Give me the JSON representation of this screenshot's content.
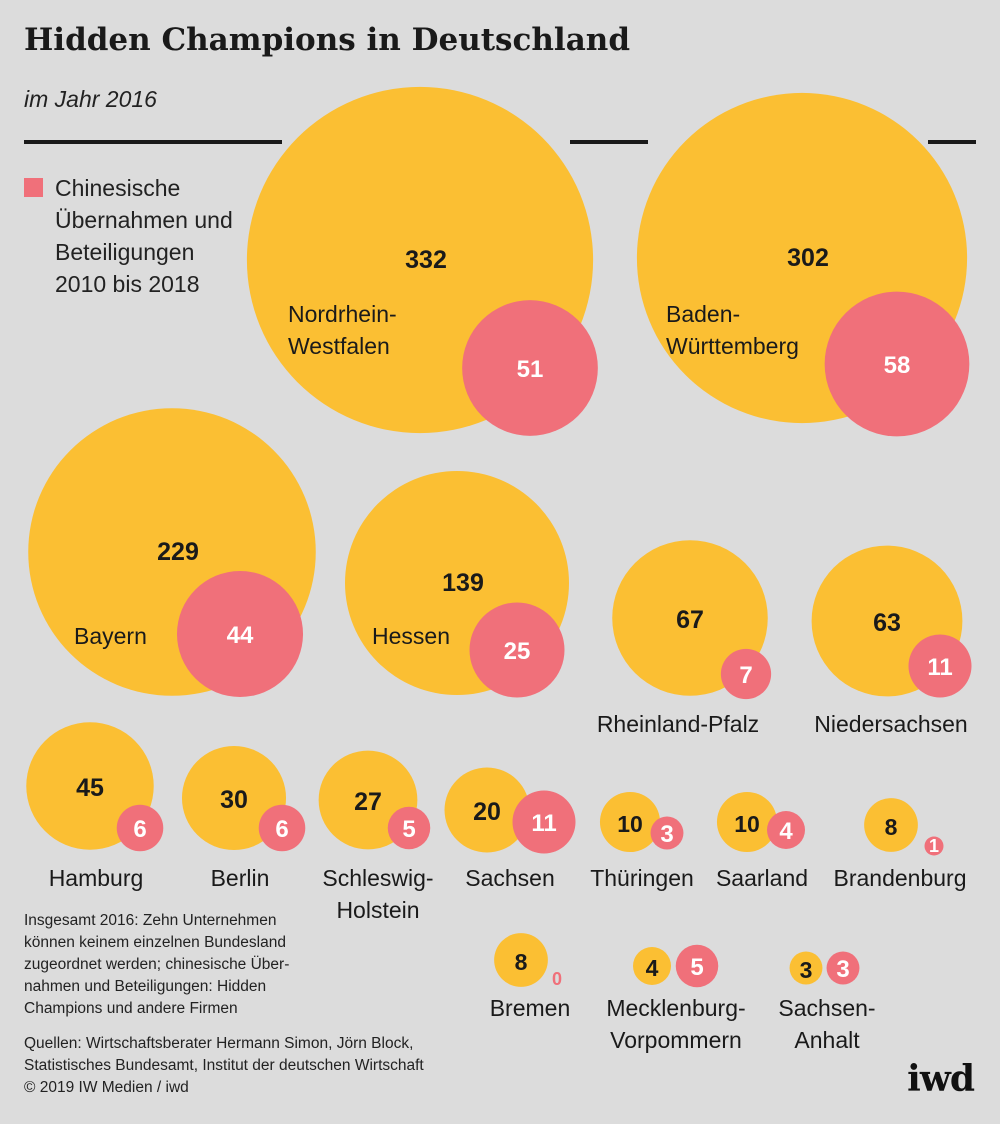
{
  "title": "Hidden Champions in Deutschland",
  "subtitle": "im Jahr 2016",
  "legend": {
    "label": "Chinesische Übernahmen und Beteiligungen 2010 bis 2018",
    "color": "#f0707a"
  },
  "colors": {
    "champions": "#fbbf33",
    "chinese": "#f0707a",
    "chinese_label": "#f0707a",
    "value_text": "#1a1a1a",
    "chinese_text": "#ffffff"
  },
  "chart_data": {
    "type": "bubble",
    "title": "Hidden Champions in Deutschland",
    "subtitle": "im Jahr 2016",
    "series": [
      {
        "name": "Hidden Champions 2016",
        "color": "#fbbf33"
      },
      {
        "name": "Chinesische Übernahmen und Beteiligungen 2010 bis 2018",
        "color": "#f0707a"
      }
    ],
    "regions": [
      {
        "label": "Nordrhein-Westfalen",
        "champions": 332,
        "chinese": 51
      },
      {
        "label": "Baden-Württemberg",
        "champions": 302,
        "chinese": 58
      },
      {
        "label": "Bayern",
        "champions": 229,
        "chinese": 44
      },
      {
        "label": "Hessen",
        "champions": 139,
        "chinese": 25
      },
      {
        "label": "Rheinland-Pfalz",
        "champions": 67,
        "chinese": 7
      },
      {
        "label": "Niedersachsen",
        "champions": 63,
        "chinese": 11
      },
      {
        "label": "Hamburg",
        "champions": 45,
        "chinese": 6
      },
      {
        "label": "Berlin",
        "champions": 30,
        "chinese": 6
      },
      {
        "label": "Schleswig-Holstein",
        "champions": 27,
        "chinese": 5
      },
      {
        "label": "Sachsen",
        "champions": 20,
        "chinese": 11
      },
      {
        "label": "Thüringen",
        "champions": 10,
        "chinese": 3
      },
      {
        "label": "Saarland",
        "champions": 10,
        "chinese": 4
      },
      {
        "label": "Brandenburg",
        "champions": 8,
        "chinese": 1
      },
      {
        "label": "Bremen",
        "champions": 8,
        "chinese": 0
      },
      {
        "label": "Mecklenburg-Vorpommern",
        "champions": 4,
        "chinese": 5
      },
      {
        "label": "Sachsen-Anhalt",
        "champions": 3,
        "chinese": 3
      }
    ]
  },
  "notes": {
    "total": "Insgesamt 2016: Zehn Unternehmen können keinem einzelnen Bundesland zugeordnet werden; chinesische Übernahmen und Beteiligungen: Hidden Champions und andere Firmen",
    "source": "Quellen: Wirtschaftsberater Hermann Simon, Jörn Block, Statistisches Bundesamt, Institut der deutschen Wirtschaft",
    "copyright": "© 2019 IW Medien / iwd"
  },
  "logo": "iwd"
}
